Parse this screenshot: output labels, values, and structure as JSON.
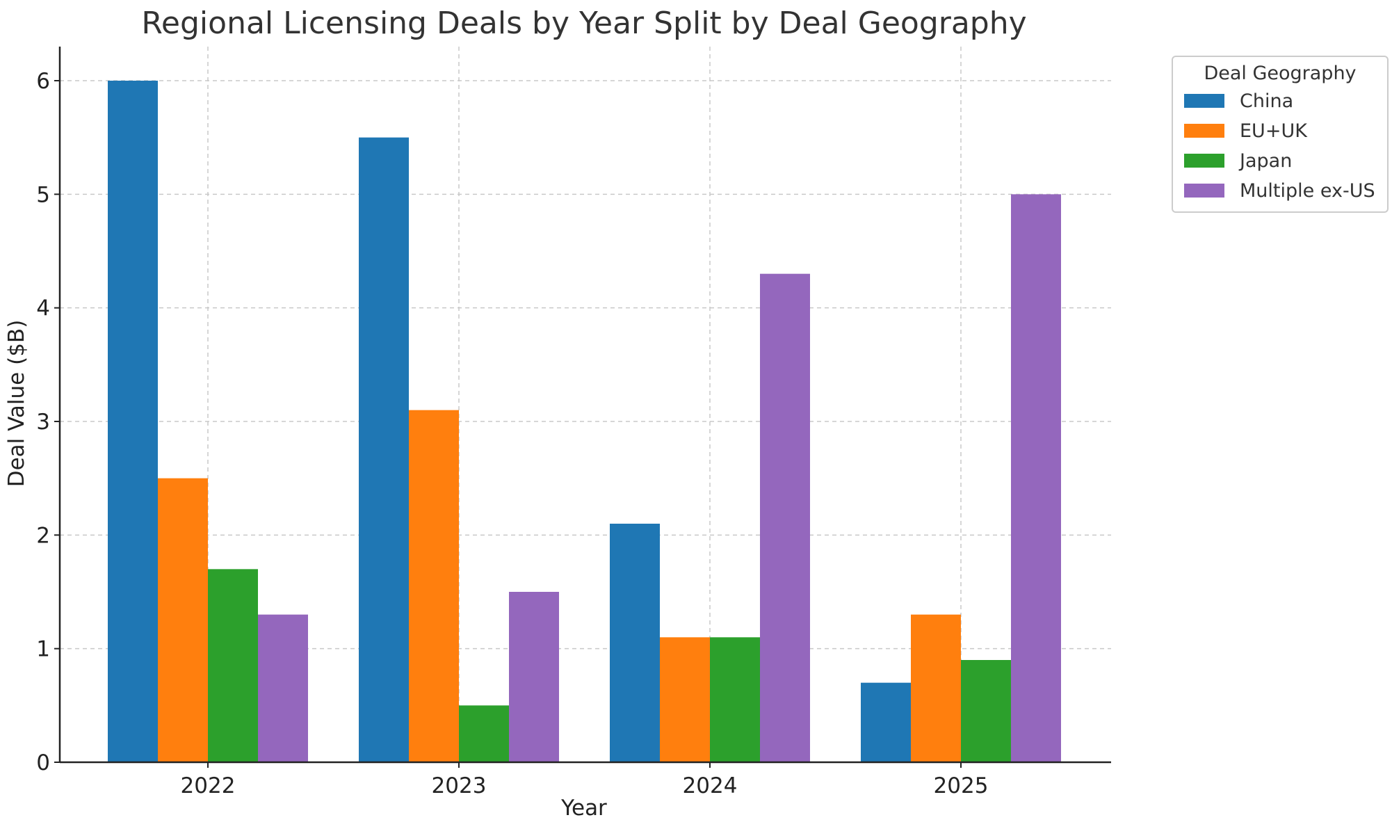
{
  "chart_data": {
    "type": "bar",
    "title": "Regional Licensing Deals by Year Split by Deal Geography",
    "xlabel": "Year",
    "ylabel": "Deal Value ($B)",
    "categories": [
      "2022",
      "2023",
      "2024",
      "2025"
    ],
    "ylim": [
      0,
      6.3
    ],
    "yticks": [
      0,
      1,
      2,
      3,
      4,
      5,
      6
    ],
    "grid": true,
    "legend": {
      "title": "Deal Geography",
      "placement": "outside-top-right"
    },
    "series": [
      {
        "name": "China",
        "color": "#1f77b4",
        "values": [
          6.0,
          5.5,
          2.1,
          0.7
        ]
      },
      {
        "name": "EU+UK",
        "color": "#ff7f0e",
        "values": [
          2.5,
          3.1,
          1.1,
          1.3
        ]
      },
      {
        "name": "Japan",
        "color": "#2ca02c",
        "values": [
          1.7,
          0.5,
          1.1,
          0.9
        ]
      },
      {
        "name": "Multiple ex-US",
        "color": "#9467bd",
        "values": [
          1.3,
          1.5,
          4.3,
          5.0
        ]
      }
    ]
  }
}
